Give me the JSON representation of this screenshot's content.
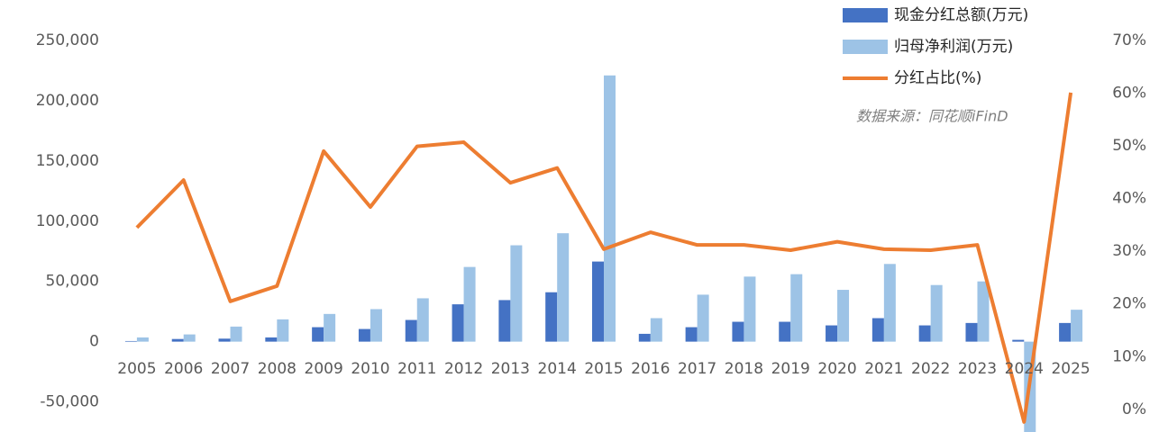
{
  "chart_data": {
    "type": "bar-line",
    "annotation": "数据来源：同花顺iFinD",
    "categories": [
      "2005",
      "2006",
      "2007",
      "2008",
      "2009",
      "2010",
      "2011",
      "2012",
      "2013",
      "2014",
      "2015",
      "2016",
      "2017",
      "2018",
      "2019",
      "2020",
      "2021",
      "2022",
      "2023",
      "2024",
      "2025"
    ],
    "series": [
      {
        "name": "现金分红总额(万元)",
        "type": "bar",
        "color": "#4472c4",
        "values": [
          500,
          2200,
          2500,
          3500,
          12000,
          10500,
          18000,
          31000,
          34500,
          41000,
          66500,
          6500,
          12000,
          16500,
          16500,
          13500,
          19500,
          13500,
          15500,
          1500,
          15500
        ]
      },
      {
        "name": "归母净利润(万元)",
        "type": "bar",
        "color": "#9dc3e6",
        "values": [
          3500,
          6000,
          12500,
          18500,
          23000,
          27000,
          36000,
          62000,
          80000,
          90000,
          221000,
          19500,
          39000,
          54000,
          56000,
          43000,
          64500,
          47000,
          50000,
          -75000,
          26500
        ]
      },
      {
        "name": "分红占比(%)",
        "type": "line",
        "axis": "y2",
        "color": "#ed7d31",
        "values": [
          34.5,
          43.5,
          20.5,
          23.4,
          49,
          38.4,
          49.9,
          50.7,
          43,
          45.8,
          30.4,
          33.6,
          31.2,
          31.2,
          30.2,
          31.8,
          30.4,
          30.2,
          31.2,
          -2.4,
          60.1
        ]
      }
    ],
    "ylim": [
      -75000,
      250000
    ],
    "yticks": [
      {
        "value": -50000,
        "label": "-50,000"
      },
      0,
      {
        "value": 50000,
        "label": "50,000"
      },
      {
        "value": 100000,
        "label": "100,000"
      },
      {
        "value": 150000,
        "label": "150,000"
      },
      {
        "value": 200000,
        "label": "200,000"
      },
      {
        "value": 250000,
        "label": "250,000"
      }
    ],
    "y2lim": [
      -4.3,
      70
    ],
    "y2ticks": [
      {
        "value": 0,
        "label": "0%"
      },
      {
        "value": 10,
        "label": "10%"
      },
      {
        "value": 20,
        "label": "20%"
      },
      {
        "value": 30,
        "label": "30%"
      },
      {
        "value": 40,
        "label": "40%"
      },
      {
        "value": 50,
        "label": "50%"
      },
      {
        "value": 60,
        "label": "60%"
      },
      {
        "value": 70,
        "label": "70%"
      }
    ],
    "legend": "top-right",
    "grid": false
  }
}
